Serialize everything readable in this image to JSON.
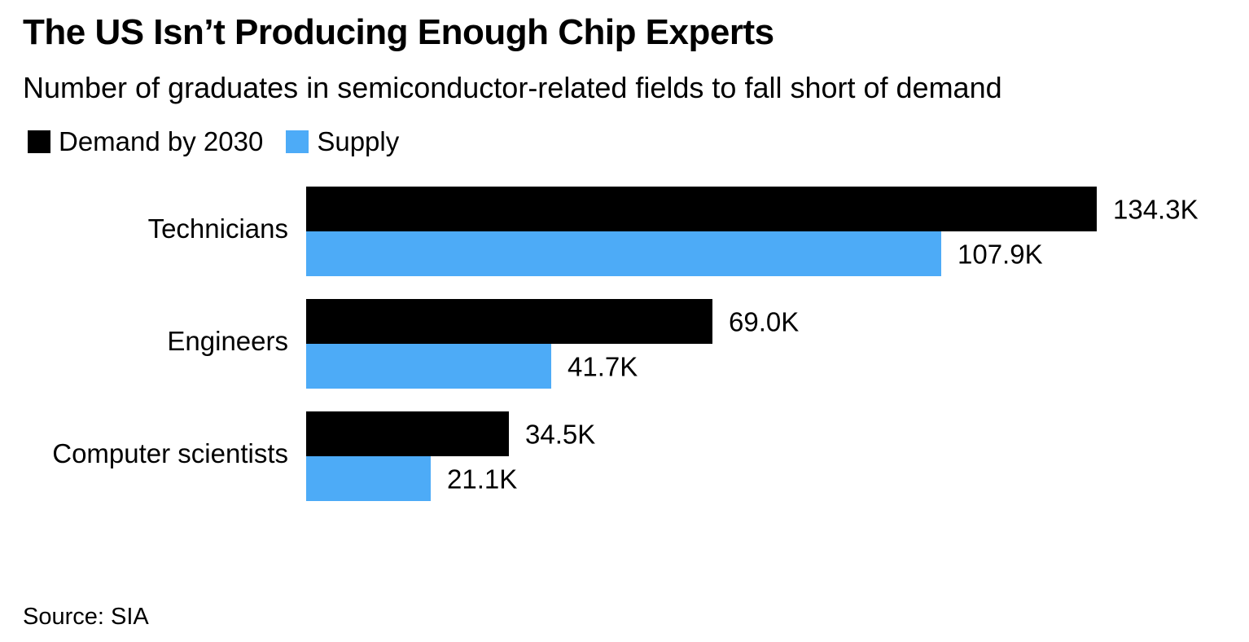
{
  "title": "The US Isn’t Producing Enough Chip Experts",
  "subtitle": "Number of graduates in semiconductor-related fields to fall short of demand",
  "source": "Source: SIA",
  "colors": {
    "demand": "#000000",
    "supply": "#4dabf7"
  },
  "chart_data": {
    "type": "bar",
    "orientation": "horizontal",
    "title": "The US Isn’t Producing Enough Chip Experts",
    "subtitle": "Number of graduates in semiconductor-related fields to fall short of demand",
    "categories": [
      "Technicians",
      "Engineers",
      "Computer scientists"
    ],
    "series": [
      {
        "name": "Demand by 2030",
        "values": [
          134.3,
          69.0,
          34.5
        ],
        "labels": [
          "134.3K",
          "69.0K",
          "34.5K"
        ],
        "color": "#000000"
      },
      {
        "name": "Supply",
        "values": [
          107.9,
          41.7,
          21.1
        ],
        "labels": [
          "107.9K",
          "41.7K",
          "21.1K"
        ],
        "color": "#4dabf7"
      }
    ],
    "unit": "K",
    "xlim": [
      0,
      134.3
    ],
    "grid": false,
    "legend_position": "top-left"
  }
}
